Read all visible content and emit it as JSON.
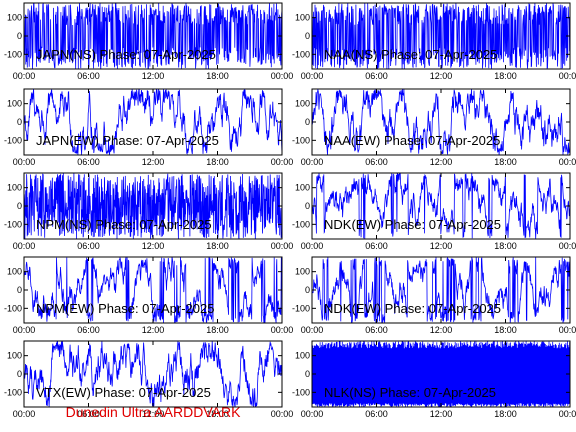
{
  "footer_text": "Dunedin Ultra AARDDVARK",
  "colors": {
    "trace": "#0000ff",
    "frame": "#000000",
    "footer": "#e00000",
    "background": "#ffffff"
  },
  "chart_data": [
    {
      "type": "line",
      "title": "JAPN(NS) Phase: 07-Apr-2025",
      "xlim": [
        "00:00",
        "24:00"
      ],
      "ylim": [
        -180,
        180
      ],
      "xticks": [
        "00:00",
        "06:00",
        "12:00",
        "18:00",
        "00:00"
      ],
      "yticks": [
        100,
        0,
        -100
      ],
      "series": [
        {
          "pattern": "dense",
          "values": []
        }
      ]
    },
    {
      "type": "line",
      "title": "NAA(NS) Phase: 07-Apr-2025",
      "xlim": [
        "00:00",
        "24:00"
      ],
      "ylim": [
        -180,
        180
      ],
      "xticks": [
        "00:00",
        "06:00",
        "12:00",
        "18:00",
        "00:00"
      ],
      "yticks": [
        100,
        0,
        -100
      ],
      "series": [
        {
          "pattern": "dense",
          "values": []
        }
      ]
    },
    {
      "type": "line",
      "title": "JAPN(EW) Phase: 07-Apr-2025",
      "xlim": [
        "00:00",
        "24:00"
      ],
      "ylim": [
        -180,
        180
      ],
      "xticks": [
        "00:00",
        "06:00",
        "12:00",
        "18:00",
        "00:00"
      ],
      "yticks": [
        100,
        0,
        -100
      ],
      "series": [
        {
          "pattern": "noisy",
          "values": []
        }
      ]
    },
    {
      "type": "line",
      "title": "NAA(EW) Phase: 07-Apr-2025",
      "xlim": [
        "00:00",
        "24:00"
      ],
      "ylim": [
        -180,
        180
      ],
      "xticks": [
        "00:00",
        "06:00",
        "12:00",
        "18:00",
        "00:00"
      ],
      "yticks": [
        100,
        0,
        -100
      ],
      "series": [
        {
          "pattern": "noisy",
          "values": []
        }
      ]
    },
    {
      "type": "line",
      "title": "NPM(NS) Phase: 07-Apr-2025",
      "xlim": [
        "00:00",
        "24:00"
      ],
      "ylim": [
        -180,
        180
      ],
      "xticks": [
        "00:00",
        "06:00",
        "12:00",
        "18:00",
        "00:00"
      ],
      "yticks": [
        100,
        0,
        -100
      ],
      "series": [
        {
          "pattern": "solid",
          "values": []
        }
      ]
    },
    {
      "type": "line",
      "title": "NDK(EW) Phase: 07-Apr-2025",
      "xlim": [
        "00:00",
        "24:00"
      ],
      "ylim": [
        -180,
        180
      ],
      "xticks": [
        "00:00",
        "06:00",
        "12:00",
        "18:00",
        "00:00"
      ],
      "yticks": [
        100,
        0,
        -100
      ],
      "series": [
        {
          "pattern": "wrapping",
          "values": []
        }
      ]
    },
    {
      "type": "line",
      "title": "NPM(EW) Phase: 07-Apr-2025",
      "xlim": [
        "00:00",
        "24:00"
      ],
      "ylim": [
        -180,
        180
      ],
      "xticks": [
        "00:00",
        "06:00",
        "12:00",
        "18:00",
        "00:00"
      ],
      "yticks": [
        100,
        0,
        -100
      ],
      "series": [
        {
          "pattern": "wrapping",
          "values": []
        }
      ]
    },
    {
      "type": "line",
      "title": "NDK(EW) Phase: 07-Apr-2025",
      "xlim": [
        "00:00",
        "24:00"
      ],
      "ylim": [
        -180,
        180
      ],
      "xticks": [
        "00:00",
        "06:00",
        "12:00",
        "18:00",
        "00:00"
      ],
      "yticks": [
        100,
        0,
        -100
      ],
      "series": [
        {
          "pattern": "wrapping",
          "values": []
        }
      ]
    },
    {
      "type": "line",
      "title": "VTX(EW) Phase: 07-Apr-2025",
      "xlim": [
        "00:00",
        "24:00"
      ],
      "ylim": [
        -180,
        180
      ],
      "xticks": [
        "00:00",
        "06:00",
        "12:00",
        "18:00",
        "00:00"
      ],
      "yticks": [
        100,
        0,
        -100
      ],
      "series": [
        {
          "pattern": "noisy",
          "values": []
        }
      ]
    },
    {
      "type": "line",
      "title": "NLK(NS) Phase: 07-Apr-2025",
      "xlim": [
        "00:00",
        "24:00"
      ],
      "ylim": [
        -180,
        180
      ],
      "xticks": [
        "00:00",
        "06:00",
        "12:00",
        "18:00",
        "00:00"
      ],
      "yticks": [
        100,
        0,
        -100
      ],
      "series": [
        {
          "pattern": "lower-solid",
          "values": []
        }
      ]
    }
  ]
}
